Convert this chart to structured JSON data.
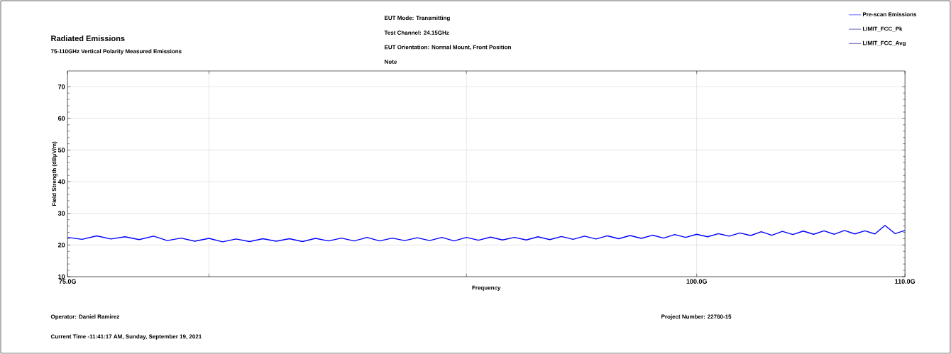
{
  "chart_data": {
    "type": "line",
    "title": "Radiated Emissions",
    "subtitle": "75-110GHz Vertical Polarity Measured Emissions",
    "xlabel": "Frequency",
    "ylabel": "Field Strength (dBµV/m)",
    "annotations": [
      "EUT Mode: Transmitting",
      "Test Channel: 24.15GHz",
      "EUT Orientation: Normal Mount, Front Position",
      "Note",
      "Operator: Daniel Ramirez",
      "Current Time -11:41:17 AM, Sunday, September 19, 2021",
      "Project Number: 22760-15"
    ],
    "log": "x",
    "xlim": [
      75,
      110
    ],
    "ylim": [
      10,
      75
    ],
    "xticks": [
      {
        "value": 75,
        "label": "75.0G"
      },
      {
        "value": 80,
        "label": null
      },
      {
        "value": 90,
        "label": null
      },
      {
        "value": 100,
        "label": "100.0G"
      },
      {
        "value": 110,
        "label": "110.0G"
      }
    ],
    "yticks": [
      10,
      20,
      30,
      40,
      50,
      60,
      70
    ],
    "grid": true,
    "legend": "top right",
    "x": [
      75,
      75.5,
      76,
      76.5,
      77,
      77.5,
      78,
      78.5,
      79,
      79.5,
      80,
      80.5,
      81,
      81.5,
      82,
      82.5,
      83,
      83.5,
      84,
      84.5,
      85,
      85.5,
      86,
      86.5,
      87,
      87.5,
      88,
      88.5,
      89,
      89.5,
      90,
      90.5,
      91,
      91.5,
      92,
      92.5,
      93,
      93.5,
      94,
      94.5,
      95,
      95.5,
      96,
      96.5,
      97,
      97.5,
      98,
      98.5,
      99,
      99.5,
      100,
      100.5,
      101,
      101.5,
      102,
      102.5,
      103,
      103.5,
      104,
      104.5,
      105,
      105.5,
      106,
      106.5,
      107,
      107.5,
      108,
      108.5,
      109,
      109.5,
      110
    ],
    "series": [
      {
        "name": "Pre-scan Emissions",
        "color": "#0000ff",
        "values": [
          22.4,
          21.8,
          22.9,
          21.9,
          22.6,
          21.7,
          22.8,
          21.4,
          22.2,
          21.2,
          22.1,
          21.0,
          21.9,
          21.1,
          22.0,
          21.2,
          22.0,
          21.1,
          22.1,
          21.3,
          22.2,
          21.3,
          22.4,
          21.3,
          22.2,
          21.4,
          22.3,
          21.4,
          22.4,
          21.3,
          22.4,
          21.5,
          22.5,
          21.6,
          22.4,
          21.6,
          22.6,
          21.7,
          22.7,
          21.8,
          22.8,
          21.9,
          22.9,
          22.0,
          23.0,
          22.1,
          23.1,
          22.2,
          23.3,
          22.4,
          23.4,
          22.6,
          23.6,
          22.8,
          23.8,
          23.0,
          24.2,
          23.1,
          24.3,
          23.3,
          24.4,
          23.4,
          24.5,
          23.4,
          24.6,
          23.5,
          24.5,
          23.5,
          26.2,
          23.6,
          24.6
        ]
      },
      {
        "name": "LIMIT_FCC_Pk",
        "color": "#00008b",
        "values": [
          null,
          null,
          null,
          null,
          null,
          null,
          null,
          null,
          null,
          null,
          null,
          null,
          null,
          null,
          null,
          null,
          null,
          null,
          null,
          null,
          null,
          null,
          null,
          null,
          null,
          null,
          null,
          null,
          null,
          null,
          null,
          null,
          null,
          null,
          null,
          null,
          null,
          null,
          null,
          null,
          null,
          null,
          null,
          null,
          null,
          null,
          null,
          null,
          null,
          null,
          null,
          null,
          null,
          null,
          null,
          null,
          null,
          null,
          null,
          null,
          null,
          null,
          null,
          null,
          null,
          null,
          null,
          null,
          null,
          null,
          null
        ]
      },
      {
        "name": "LIMIT_FCC_Avg",
        "color": "#00008b",
        "values": [
          null,
          null,
          null,
          null,
          null,
          null,
          null,
          null,
          null,
          null,
          null,
          null,
          null,
          null,
          null,
          null,
          null,
          null,
          null,
          null,
          null,
          null,
          null,
          null,
          null,
          null,
          null,
          null,
          null,
          null,
          null,
          null,
          null,
          null,
          null,
          null,
          null,
          null,
          null,
          null,
          null,
          null,
          null,
          null,
          null,
          null,
          null,
          null,
          null,
          null,
          null,
          null,
          null,
          null,
          null,
          null,
          null,
          null,
          null,
          null,
          null,
          null,
          null,
          null,
          null,
          null,
          null,
          null,
          null,
          null,
          null
        ]
      }
    ]
  }
}
